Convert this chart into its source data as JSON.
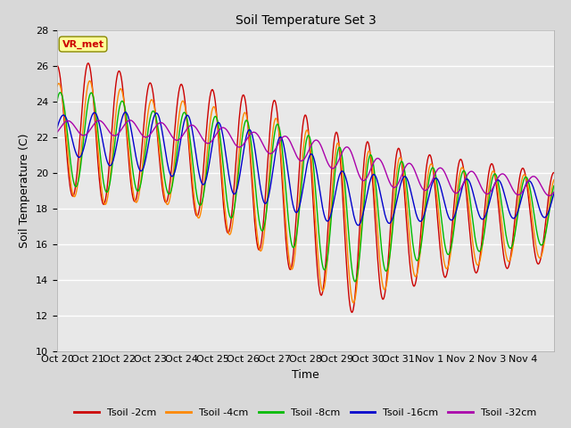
{
  "title": "Soil Temperature Set 3",
  "xlabel": "Time",
  "ylabel": "Soil Temperature (C)",
  "ylim": [
    10,
    28
  ],
  "yticks": [
    10,
    12,
    14,
    16,
    18,
    20,
    22,
    24,
    26,
    28
  ],
  "xtick_labels": [
    "Oct 20",
    "Oct 21",
    "Oct 22",
    "Oct 23",
    "Oct 24",
    "Oct 25",
    "Oct 26",
    "Oct 27",
    "Oct 28",
    "Oct 29",
    "Oct 30",
    "Oct 31",
    "Nov 1",
    "Nov 2",
    "Nov 3",
    "Nov 4"
  ],
  "colors": {
    "Tsoil -2cm": "#cc0000",
    "Tsoil -4cm": "#ff8800",
    "Tsoil -8cm": "#00bb00",
    "Tsoil -16cm": "#0000cc",
    "Tsoil -32cm": "#aa00aa"
  },
  "annotation_text": "VR_met",
  "annotation_color": "#cc0000",
  "annotation_bg": "#ffff99",
  "fig_facecolor": "#d8d8d8",
  "ax_facecolor": "#e8e8e8"
}
